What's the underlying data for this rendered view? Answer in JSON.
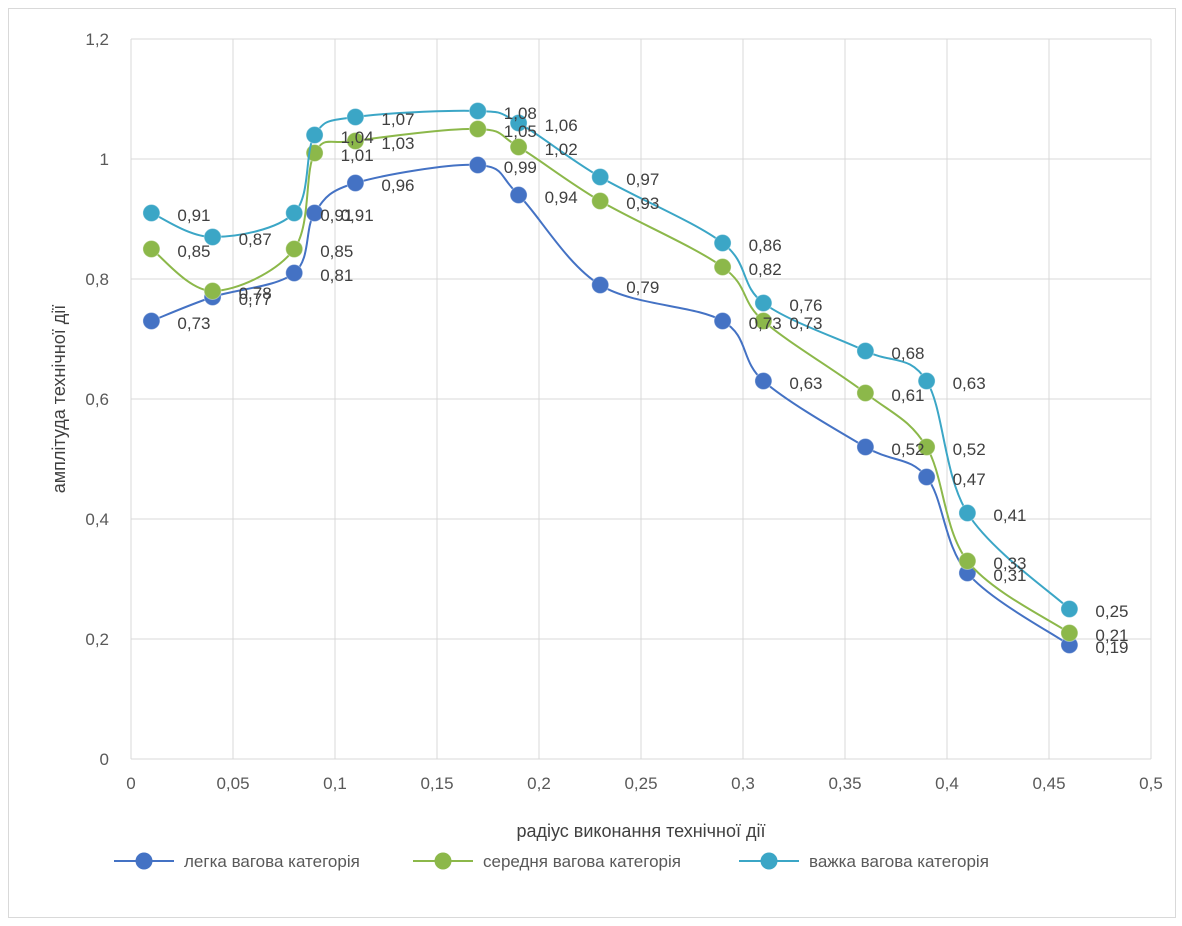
{
  "chart_data": {
    "type": "line",
    "title": "",
    "xlabel": "радіус виконання технічної дії",
    "ylabel": "амплітуда технічної дії",
    "xlim": [
      0,
      0.5
    ],
    "ylim": [
      0,
      1.2
    ],
    "x_ticks": [
      "0",
      "0,05",
      "0,1",
      "0,15",
      "0,2",
      "0,25",
      "0,3",
      "0,35",
      "0,4",
      "0,45",
      "0,5"
    ],
    "y_ticks": [
      "0",
      "0,2",
      "0,4",
      "0,6",
      "0,8",
      "1",
      "1,2"
    ],
    "x": [
      0.01,
      0.04,
      0.08,
      0.09,
      0.11,
      0.17,
      0.19,
      0.23,
      0.29,
      0.31,
      0.36,
      0.39,
      0.41,
      0.46
    ],
    "grid": "vertical and horizontal",
    "legend_position": "bottom",
    "smooth": true,
    "series": [
      {
        "name": "легка вагова категорія",
        "color": "#4472C4",
        "values": [
          0.73,
          0.77,
          0.81,
          0.91,
          0.96,
          0.99,
          0.94,
          0.79,
          0.73,
          0.63,
          0.52,
          0.47,
          0.31,
          0.19
        ],
        "labels": [
          "0,73",
          "0,77",
          "0,81",
          "0,91",
          "0,96",
          "0,99",
          "0,94",
          "0,79",
          "0,73",
          "0,63",
          "0,52",
          "0,47",
          "0,31",
          "0,19"
        ]
      },
      {
        "name": "середня вагова категорія",
        "color": "#8CB84A",
        "values": [
          0.85,
          0.78,
          0.85,
          1.01,
          1.03,
          1.05,
          1.02,
          0.93,
          0.82,
          0.73,
          0.61,
          0.52,
          0.33,
          0.21
        ],
        "labels": [
          "0,85",
          "0,78",
          "0,85",
          "1,01",
          "1,03",
          "1,05",
          "1,02",
          "0,93",
          "0,82",
          "0,73",
          "0,61",
          "0,52",
          "0,33",
          "0,21"
        ]
      },
      {
        "name": "важка вагова категорія",
        "color": "#3BA6C6",
        "values": [
          0.91,
          0.87,
          0.91,
          1.04,
          1.07,
          1.08,
          1.06,
          0.97,
          0.86,
          0.76,
          0.68,
          0.63,
          0.41,
          0.25
        ],
        "labels": [
          "0,91",
          "0,87",
          "0,91",
          "1,04",
          "1,07",
          "1,08",
          "1,06",
          "0,97",
          "0,86",
          "0,76",
          "0,68",
          "0,63",
          "0,41",
          "0,25"
        ]
      }
    ]
  }
}
